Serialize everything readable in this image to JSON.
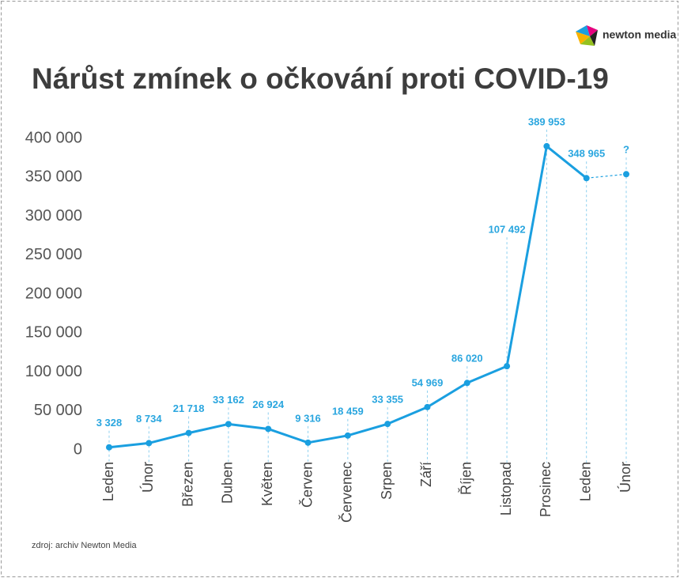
{
  "logo": "newton media",
  "source": "zdroj: archiv Newton Media",
  "chart_data": {
    "type": "line",
    "title": "Nárůst zmínek o očkování proti COVID-19",
    "categories": [
      "Leden",
      "Únor",
      "Březen",
      "Duben",
      "Květen",
      "Červen",
      "Červenec",
      "Srpen",
      "Září",
      "Říjen",
      "Listopad",
      "Prosinec",
      "Leden",
      "Únor"
    ],
    "values": [
      3328,
      8734,
      21718,
      33162,
      26924,
      9316,
      18459,
      33355,
      54969,
      86020,
      107492,
      389953,
      348965,
      354000
    ],
    "value_labels": [
      "3 328",
      "8 734",
      "21 718",
      "33 162",
      "26 924",
      "9 316",
      "18 459",
      "33 355",
      "54 969",
      "86 020",
      "107 492",
      "389 953",
      "348 965",
      "?"
    ],
    "color": "#1a9fe0",
    "dashed_last_segment": true,
    "ylim": [
      0,
      400000
    ],
    "yticks": [
      0,
      {
        "value": 50000,
        "label": "50 000"
      },
      {
        "value": 100000,
        "label": "100 000"
      },
      {
        "value": 150000,
        "label": "150 000"
      },
      {
        "value": 200000,
        "label": "200 000"
      },
      {
        "value": 250000,
        "label": "250 000"
      },
      {
        "value": 300000,
        "label": "300 000"
      },
      {
        "value": 350000,
        "label": "350 000"
      },
      {
        "value": 400000,
        "label": "400 000"
      }
    ],
    "grid": false
  }
}
